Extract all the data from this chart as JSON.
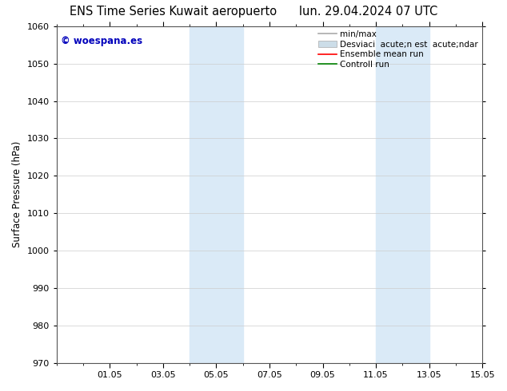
{
  "title_left": "ENS Time Series Kuwait aeropuerto",
  "title_right": "lun. 29.04.2024 07 UTC",
  "ylabel": "Surface Pressure (hPa)",
  "ylim": [
    970,
    1060
  ],
  "yticks": [
    970,
    980,
    990,
    1000,
    1010,
    1020,
    1030,
    1040,
    1050,
    1060
  ],
  "xlim": [
    0,
    16
  ],
  "xtick_positions": [
    2,
    4,
    6,
    8,
    10,
    12,
    14,
    16
  ],
  "xtick_labels": [
    "01.05",
    "03.05",
    "05.05",
    "07.05",
    "09.05",
    "11.05",
    "13.05",
    "15.05"
  ],
  "shaded_bands": [
    {
      "xstart": 5,
      "xend": 7
    },
    {
      "xstart": 12,
      "xend": 14
    }
  ],
  "shaded_color": "#daeaf7",
  "watermark_text": "© woespana.es",
  "watermark_color": "#0000bb",
  "legend_labels": [
    "min/max",
    "Desviaci  acute;n est  acute;ndar",
    "Ensemble mean run",
    "Controll run"
  ],
  "legend_colors": [
    "#aaaaaa",
    "#ccdde8",
    "red",
    "green"
  ],
  "bg_color": "#ffffff",
  "grid_color": "#cccccc",
  "title_fontsize": 10.5,
  "label_fontsize": 8.5,
  "tick_fontsize": 8,
  "legend_fontsize": 7.5
}
